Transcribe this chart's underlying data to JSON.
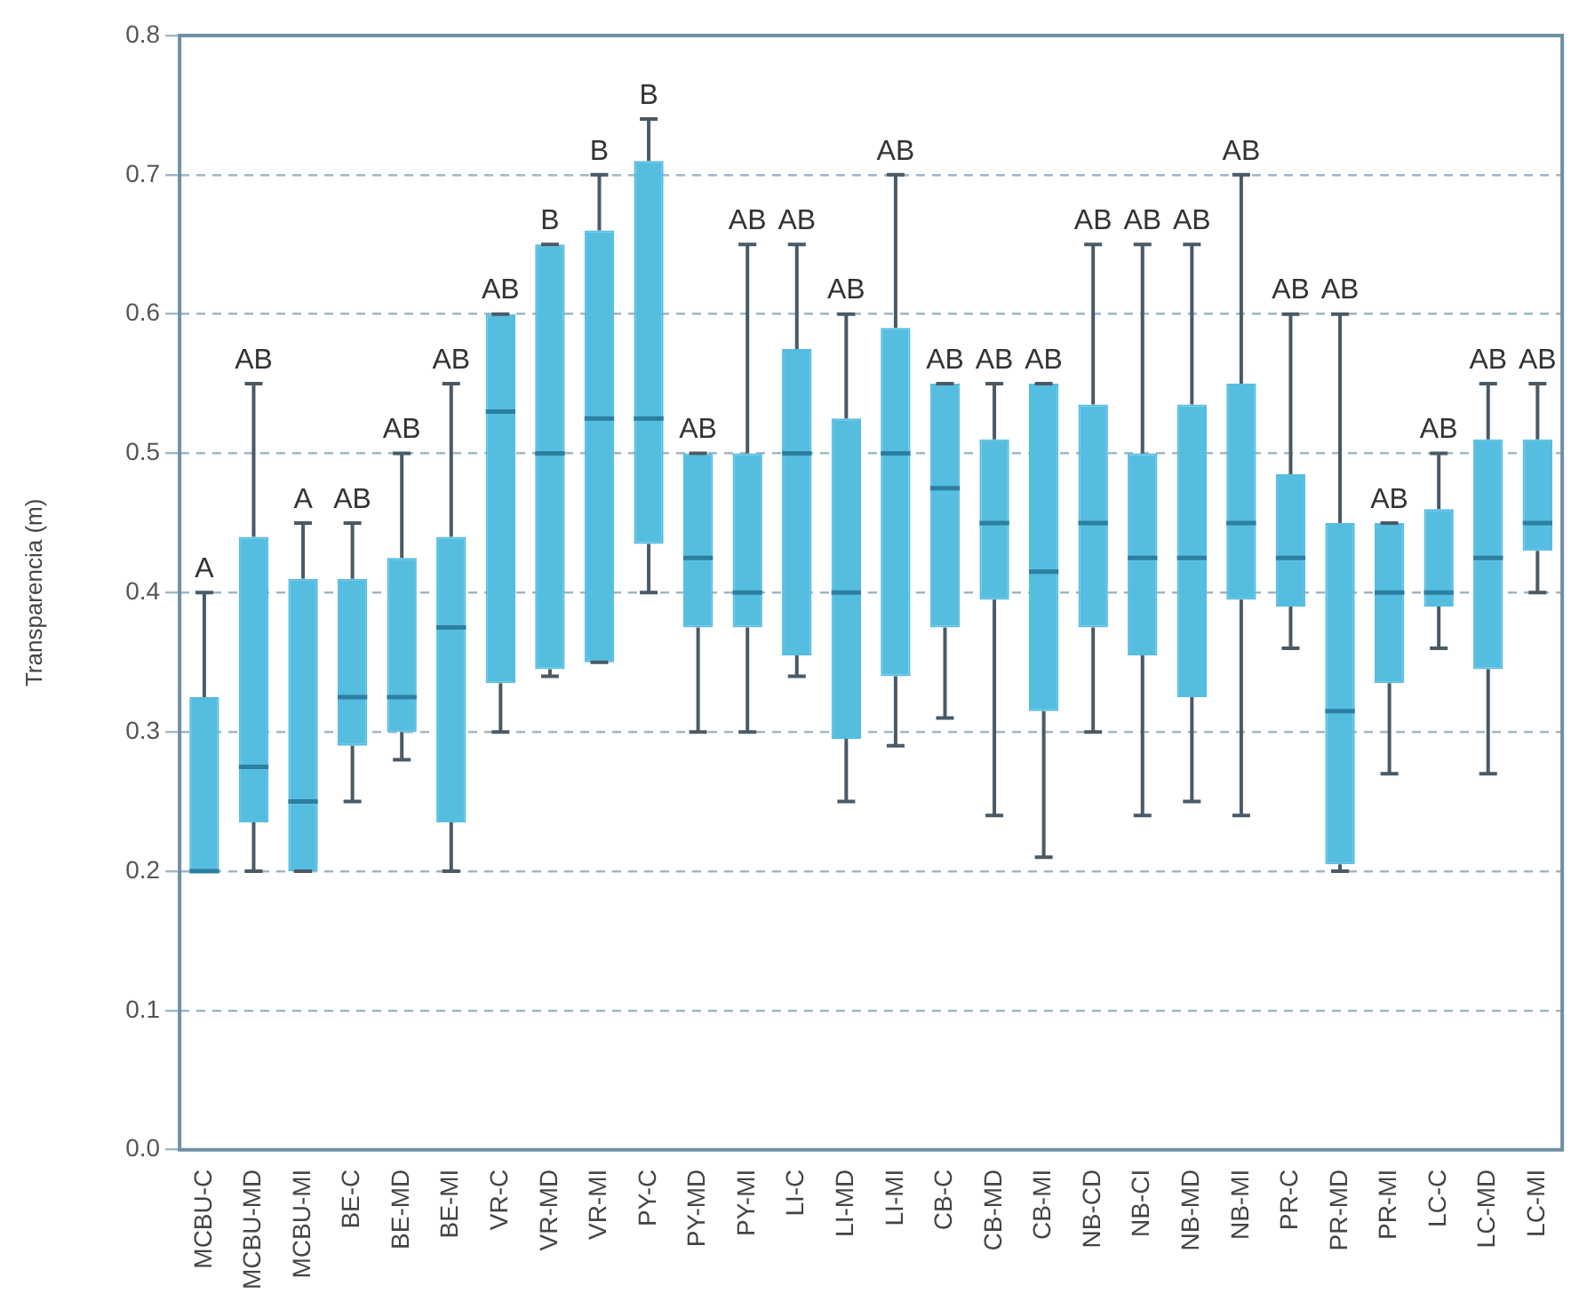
{
  "chart_data": {
    "type": "box",
    "ylabel": "Transparencia (m)",
    "categories": [
      "MCBU-C",
      "MCBU-MD",
      "MCBU-MI",
      "BE-C",
      "BE-MD",
      "BE-MI",
      "VR-C",
      "VR-MD",
      "VR-MI",
      "PY-C",
      "PY-MD",
      "PY-MI",
      "LI-C",
      "LI-MD",
      "LI-MI",
      "CB-C",
      "CB-MD",
      "CB-MI",
      "NB-CD",
      "NB-CI",
      "NB-MD",
      "NB-MI",
      "PR-C",
      "PR-MD",
      "PR-MI",
      "LC-C",
      "LC-MD",
      "LC-MI"
    ],
    "series": [
      {
        "color": "#55bde0",
        "boxes": [
          {
            "low": 0.2,
            "q1": 0.2,
            "median": 0.2,
            "q3": 0.325,
            "high": 0.4
          },
          {
            "low": 0.2,
            "q1": 0.235,
            "median": 0.275,
            "q3": 0.44,
            "high": 0.55
          },
          {
            "low": 0.2,
            "q1": 0.2,
            "median": 0.25,
            "q3": 0.41,
            "high": 0.45
          },
          {
            "low": 0.25,
            "q1": 0.29,
            "median": 0.325,
            "q3": 0.41,
            "high": 0.45
          },
          {
            "low": 0.28,
            "q1": 0.3,
            "median": 0.325,
            "q3": 0.425,
            "high": 0.5
          },
          {
            "low": 0.2,
            "q1": 0.235,
            "median": 0.375,
            "q3": 0.44,
            "high": 0.55
          },
          {
            "low": 0.3,
            "q1": 0.335,
            "median": 0.53,
            "q3": 0.6,
            "high": 0.6
          },
          {
            "low": 0.34,
            "q1": 0.345,
            "median": 0.5,
            "q3": 0.65,
            "high": 0.65
          },
          {
            "low": 0.35,
            "q1": 0.35,
            "median": 0.525,
            "q3": 0.66,
            "high": 0.7
          },
          {
            "low": 0.4,
            "q1": 0.435,
            "median": 0.525,
            "q3": 0.71,
            "high": 0.74
          },
          {
            "low": 0.3,
            "q1": 0.375,
            "median": 0.425,
            "q3": 0.5,
            "high": 0.5
          },
          {
            "low": 0.3,
            "q1": 0.375,
            "median": 0.4,
            "q3": 0.5,
            "high": 0.65
          },
          {
            "low": 0.34,
            "q1": 0.355,
            "median": 0.5,
            "q3": 0.575,
            "high": 0.65
          },
          {
            "low": 0.25,
            "q1": 0.295,
            "median": 0.4,
            "q3": 0.525,
            "high": 0.6
          },
          {
            "low": 0.29,
            "q1": 0.34,
            "median": 0.5,
            "q3": 0.59,
            "high": 0.7
          },
          {
            "low": 0.31,
            "q1": 0.375,
            "median": 0.475,
            "q3": 0.55,
            "high": 0.55
          },
          {
            "low": 0.24,
            "q1": 0.395,
            "median": 0.45,
            "q3": 0.51,
            "high": 0.55
          },
          {
            "low": 0.21,
            "q1": 0.315,
            "median": 0.415,
            "q3": 0.55,
            "high": 0.55
          },
          {
            "low": 0.3,
            "q1": 0.375,
            "median": 0.45,
            "q3": 0.535,
            "high": 0.65
          },
          {
            "low": 0.24,
            "q1": 0.355,
            "median": 0.425,
            "q3": 0.5,
            "high": 0.65
          },
          {
            "low": 0.25,
            "q1": 0.325,
            "median": 0.425,
            "q3": 0.535,
            "high": 0.65
          },
          {
            "low": 0.24,
            "q1": 0.395,
            "median": 0.45,
            "q3": 0.55,
            "high": 0.7
          },
          {
            "low": 0.36,
            "q1": 0.39,
            "median": 0.425,
            "q3": 0.485,
            "high": 0.6
          },
          {
            "low": 0.2,
            "q1": 0.205,
            "median": 0.315,
            "q3": 0.45,
            "high": 0.6
          },
          {
            "low": 0.27,
            "q1": 0.335,
            "median": 0.4,
            "q3": 0.45,
            "high": 0.45
          },
          {
            "low": 0.36,
            "q1": 0.39,
            "median": 0.4,
            "q3": 0.46,
            "high": 0.5
          },
          {
            "low": 0.27,
            "q1": 0.345,
            "median": 0.425,
            "q3": 0.51,
            "high": 0.55
          },
          {
            "low": 0.4,
            "q1": 0.43,
            "median": 0.45,
            "q3": 0.51,
            "high": 0.55
          }
        ]
      }
    ],
    "ylim": [
      0,
      0.8
    ],
    "yticks": [
      {
        "value": 0,
        "label": "0.0"
      },
      0.1,
      0.2,
      0.3,
      0.4,
      0.5,
      0.6,
      0.7,
      0.8
    ],
    "grid": "y",
    "annotations": [
      {
        "text": "A",
        "x": "MCBU-C",
        "y": 0.4
      },
      {
        "text": "AB",
        "x": "MCBU-MD",
        "y": 0.55
      },
      {
        "text": "A",
        "x": "MCBU-MI",
        "y": 0.45
      },
      {
        "text": "AB",
        "x": "BE-C",
        "y": 0.45
      },
      {
        "text": "AB",
        "x": "BE-MD",
        "y": 0.5
      },
      {
        "text": "AB",
        "x": "BE-MI",
        "y": 0.55
      },
      {
        "text": "AB",
        "x": "VR-C",
        "y": 0.6
      },
      {
        "text": "B",
        "x": "VR-MD",
        "y": 0.65
      },
      {
        "text": "B",
        "x": "VR-MI",
        "y": 0.7
      },
      {
        "text": "B",
        "x": "PY-C",
        "y": 0.74
      },
      {
        "text": "AB",
        "x": "PY-MD",
        "y": 0.5
      },
      {
        "text": "AB",
        "x": "PY-MI",
        "y": 0.65
      },
      {
        "text": "AB",
        "x": "LI-C",
        "y": 0.65
      },
      {
        "text": "AB",
        "x": "LI-MD",
        "y": 0.6
      },
      {
        "text": "AB",
        "x": "LI-MI",
        "y": 0.7
      },
      {
        "text": "AB",
        "x": "CB-C",
        "y": 0.55
      },
      {
        "text": "AB",
        "x": "CB-MD",
        "y": 0.55
      },
      {
        "text": "AB",
        "x": "CB-MI",
        "y": 0.55
      },
      {
        "text": "AB",
        "x": "NB-CD",
        "y": 0.65
      },
      {
        "text": "AB",
        "x": "NB-CI",
        "y": 0.65
      },
      {
        "text": "AB",
        "x": "NB-MD",
        "y": 0.65
      },
      {
        "text": "AB",
        "x": "NB-MI",
        "y": 0.7
      },
      {
        "text": "AB",
        "x": "PR-C",
        "y": 0.6
      },
      {
        "text": "AB",
        "x": "PR-MD",
        "y": 0.6
      },
      {
        "text": "AB",
        "x": "PR-MI",
        "y": 0.45
      },
      {
        "text": "AB",
        "x": "LC-C",
        "y": 0.5
      },
      {
        "text": "AB",
        "x": "LC-MD",
        "y": 0.55
      },
      {
        "text": "AB",
        "x": "LC-MI",
        "y": 0.55
      }
    ]
  }
}
